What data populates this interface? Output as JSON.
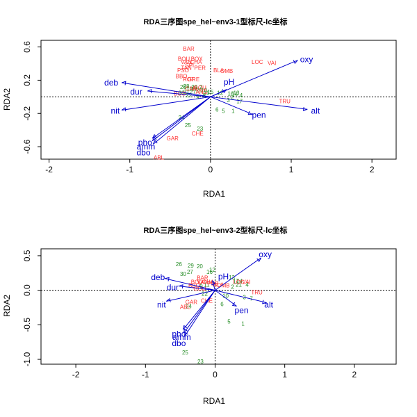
{
  "colors": {
    "species": "#ff3030",
    "sites": "#228b22",
    "env": "#0000cd",
    "axis": "#000000"
  },
  "chart_data": [
    {
      "type": "scatter",
      "title": "RDA三序图spe_hel~env3-1型标尺-lc坐标",
      "xlabel": "RDA1",
      "ylabel": "RDA2",
      "xlim": [
        -2.1,
        2.3
      ],
      "ylim": [
        -0.75,
        0.68
      ],
      "xticks": [
        -2,
        -1,
        0,
        1,
        2
      ],
      "yticks": [
        -0.6,
        -0.2,
        0.2,
        0.6
      ],
      "ytick_labels": [
        "-0.6",
        "-0.2",
        "0.2",
        "0.6"
      ],
      "species": [
        {
          "label": "BAR",
          "x": -0.27,
          "y": 0.58
        },
        {
          "label": "BOU",
          "x": -0.33,
          "y": 0.46
        },
        {
          "label": "BOX",
          "x": -0.17,
          "y": 0.46
        },
        {
          "label": "VAN",
          "x": -0.3,
          "y": 0.42
        },
        {
          "label": "CHA",
          "x": -0.18,
          "y": 0.42
        },
        {
          "label": "SPI",
          "x": -0.26,
          "y": 0.38
        },
        {
          "label": "TAN",
          "x": -0.3,
          "y": 0.35
        },
        {
          "label": "PER",
          "x": -0.13,
          "y": 0.35
        },
        {
          "label": "PSO",
          "x": -0.34,
          "y": 0.32
        },
        {
          "label": "BBO",
          "x": -0.36,
          "y": 0.25
        },
        {
          "label": "ROT",
          "x": -0.27,
          "y": 0.21
        },
        {
          "label": "GRE",
          "x": -0.21,
          "y": 0.21
        },
        {
          "label": "BLA",
          "x": 0.1,
          "y": 0.32
        },
        {
          "label": "OMB",
          "x": 0.2,
          "y": 0.31
        },
        {
          "label": "LOC",
          "x": 0.58,
          "y": 0.42
        },
        {
          "label": "VAI",
          "x": 0.76,
          "y": 0.41
        },
        {
          "label": "TRU",
          "x": 0.92,
          "y": -0.05
        },
        {
          "label": "GAR",
          "x": -0.47,
          "y": -0.5
        },
        {
          "label": "CHE",
          "x": -0.16,
          "y": -0.44
        },
        {
          "label": "ABL",
          "x": -0.64,
          "y": -0.73
        },
        {
          "label": "CAR",
          "x": -0.24,
          "y": 0.1
        },
        {
          "label": "GOU",
          "x": -0.13,
          "y": 0.11
        },
        {
          "label": "ANG",
          "x": -0.11,
          "y": 0.06
        },
        {
          "label": "BCO",
          "x": -0.38,
          "y": 0.04
        }
      ],
      "sites": [
        {
          "label": "1",
          "x": 0.28,
          "y": -0.17
        },
        {
          "label": "5",
          "x": 0.16,
          "y": -0.17
        },
        {
          "label": "4",
          "x": 0.38,
          "y": 0.02
        },
        {
          "label": "17",
          "x": 0.36,
          "y": -0.05
        },
        {
          "label": "13",
          "x": 0.32,
          "y": 0.05
        },
        {
          "label": "2",
          "x": 0.27,
          "y": 0.0
        },
        {
          "label": "3",
          "x": 0.22,
          "y": -0.04
        },
        {
          "label": "6",
          "x": 0.08,
          "y": -0.15
        },
        {
          "label": "10",
          "x": -0.08,
          "y": 0.08
        },
        {
          "label": "11",
          "x": -0.05,
          "y": 0.05
        },
        {
          "label": "12",
          "x": 0.12,
          "y": 0.05
        },
        {
          "label": "16",
          "x": 0.25,
          "y": 0.04
        },
        {
          "label": "18",
          "x": -0.2,
          "y": 0.1
        },
        {
          "label": "19",
          "x": -0.26,
          "y": 0.1
        },
        {
          "label": "21",
          "x": -0.3,
          "y": 0.06
        },
        {
          "label": "22",
          "x": -0.27,
          "y": 0.02
        },
        {
          "label": "26",
          "x": -0.34,
          "y": 0.12
        },
        {
          "label": "27",
          "x": -0.22,
          "y": 0.06
        },
        {
          "label": "28",
          "x": -0.3,
          "y": 0.13
        },
        {
          "label": "29",
          "x": -0.2,
          "y": 0.12
        },
        {
          "label": "30",
          "x": -0.36,
          "y": 0.05
        },
        {
          "label": "7",
          "x": -0.12,
          "y": 0.12
        },
        {
          "label": "8",
          "x": -0.08,
          "y": 0.02
        },
        {
          "label": "9",
          "x": -0.16,
          "y": 0.0
        },
        {
          "label": "20",
          "x": -0.14,
          "y": 0.08
        },
        {
          "label": "24",
          "x": -0.36,
          "y": -0.25
        },
        {
          "label": "25",
          "x": -0.28,
          "y": -0.34
        },
        {
          "label": "23",
          "x": -0.13,
          "y": -0.38
        },
        {
          "label": "14",
          "x": 0.3,
          "y": 0.03
        },
        {
          "label": "15",
          "x": 0.0,
          "y": 0.06
        }
      ],
      "env": [
        {
          "label": "deb",
          "x": -1.1,
          "y": 0.17,
          "lx": -1.23,
          "ly": 0.17
        },
        {
          "label": "dur",
          "x": -0.78,
          "y": 0.07,
          "lx": -0.92,
          "ly": 0.06
        },
        {
          "label": "nit",
          "x": -1.1,
          "y": -0.16,
          "lx": -1.18,
          "ly": -0.17
        },
        {
          "label": "pho",
          "x": -0.72,
          "y": -0.5,
          "lx": -0.81,
          "ly": -0.55
        },
        {
          "label": "amm",
          "x": -0.72,
          "y": -0.53,
          "lx": -0.8,
          "ly": -0.6
        },
        {
          "label": "dbo",
          "x": -0.71,
          "y": -0.57,
          "lx": -0.83,
          "ly": -0.67
        },
        {
          "label": "pH",
          "x": 0.2,
          "y": 0.09,
          "lx": 0.23,
          "ly": 0.18
        },
        {
          "label": "oxy",
          "x": 1.08,
          "y": 0.44,
          "lx": 1.19,
          "ly": 0.45
        },
        {
          "label": "pen",
          "x": 0.52,
          "y": -0.21,
          "lx": 0.6,
          "ly": -0.22
        },
        {
          "label": "alt",
          "x": 1.2,
          "y": -0.15,
          "lx": 1.3,
          "ly": -0.17
        }
      ]
    },
    {
      "type": "scatter",
      "title": "RDA三序图spe_hel~env3-2型标尺-lc坐标",
      "xlabel": "RDA1",
      "ylabel": "RDA2",
      "xlim": [
        -2.5,
        2.6
      ],
      "ylim": [
        -1.07,
        0.6
      ],
      "xticks": [
        -2,
        -1,
        0,
        1,
        2
      ],
      "yticks": [
        -1.0,
        -0.5,
        0.0,
        0.5
      ],
      "ytick_labels": [
        "-1.0",
        "-0.5",
        "0.0",
        "0.5"
      ],
      "species": [
        {
          "label": "BAR",
          "x": -0.18,
          "y": 0.18
        },
        {
          "label": "BOU",
          "x": -0.26,
          "y": 0.12
        },
        {
          "label": "VAN",
          "x": -0.18,
          "y": 0.12
        },
        {
          "label": "CHA",
          "x": -0.1,
          "y": 0.12
        },
        {
          "label": "PER",
          "x": -0.03,
          "y": 0.1
        },
        {
          "label": "BLA",
          "x": 0.05,
          "y": 0.08
        },
        {
          "label": "OMB",
          "x": 0.12,
          "y": 0.07
        },
        {
          "label": "LOC",
          "x": 0.34,
          "y": 0.12
        },
        {
          "label": "VAI",
          "x": 0.45,
          "y": 0.12
        },
        {
          "label": "TRU",
          "x": 0.6,
          "y": -0.03
        },
        {
          "label": "GAR",
          "x": -0.34,
          "y": -0.17
        },
        {
          "label": "CHE",
          "x": -0.12,
          "y": -0.15
        },
        {
          "label": "ABL",
          "x": -0.43,
          "y": -0.24
        },
        {
          "label": "GOU",
          "x": -0.22,
          "y": 0.02
        },
        {
          "label": "BBO",
          "x": -0.3,
          "y": 0.07
        }
      ],
      "sites": [
        {
          "label": "26",
          "x": -0.52,
          "y": 0.38
        },
        {
          "label": "29",
          "x": -0.35,
          "y": 0.36
        },
        {
          "label": "20",
          "x": -0.22,
          "y": 0.35
        },
        {
          "label": "30",
          "x": -0.46,
          "y": 0.24
        },
        {
          "label": "27",
          "x": -0.36,
          "y": 0.27
        },
        {
          "label": "12",
          "x": -0.04,
          "y": 0.3
        },
        {
          "label": "16",
          "x": -0.08,
          "y": 0.27
        },
        {
          "label": "13",
          "x": 0.24,
          "y": 0.19
        },
        {
          "label": "17",
          "x": 0.3,
          "y": 0.13
        },
        {
          "label": "21",
          "x": 0.34,
          "y": 0.08
        },
        {
          "label": "4",
          "x": 0.46,
          "y": 0.08
        },
        {
          "label": "14",
          "x": 0.35,
          "y": 0.13
        },
        {
          "label": "2",
          "x": 0.25,
          "y": 0.05
        },
        {
          "label": "3",
          "x": 0.42,
          "y": -0.1
        },
        {
          "label": "7",
          "x": 0.52,
          "y": -0.12
        },
        {
          "label": "10",
          "x": 0.15,
          "y": -0.08
        },
        {
          "label": "6",
          "x": 0.1,
          "y": -0.2
        },
        {
          "label": "5",
          "x": 0.2,
          "y": -0.45
        },
        {
          "label": "1",
          "x": 0.4,
          "y": -0.48
        },
        {
          "label": "24",
          "x": -0.38,
          "y": -0.23
        },
        {
          "label": "22",
          "x": -0.15,
          "y": -0.05
        },
        {
          "label": "25",
          "x": -0.43,
          "y": -0.9
        },
        {
          "label": "23",
          "x": -0.21,
          "y": -1.03
        },
        {
          "label": "9",
          "x": -0.2,
          "y": 0.06
        },
        {
          "label": "11",
          "x": -0.12,
          "y": 0.08
        }
      ],
      "env": [
        {
          "label": "deb",
          "x": -0.72,
          "y": 0.17,
          "lx": -0.82,
          "ly": 0.19
        },
        {
          "label": "dur",
          "x": -0.52,
          "y": 0.06,
          "lx": -0.61,
          "ly": 0.04
        },
        {
          "label": "nit",
          "x": -0.7,
          "y": -0.16,
          "lx": -0.77,
          "ly": -0.21
        },
        {
          "label": "pho",
          "x": -0.46,
          "y": -0.57,
          "lx": -0.52,
          "ly": -0.63
        },
        {
          "label": "amm",
          "x": -0.45,
          "y": -0.62,
          "lx": -0.48,
          "ly": -0.68
        },
        {
          "label": "dbo",
          "x": -0.44,
          "y": -0.67,
          "lx": -0.52,
          "ly": -0.77
        },
        {
          "label": "pH",
          "x": -0.04,
          "y": 0.14,
          "lx": 0.12,
          "ly": 0.2
        },
        {
          "label": "oxy",
          "x": 0.66,
          "y": 0.47,
          "lx": 0.72,
          "ly": 0.52
        },
        {
          "label": "pen",
          "x": 0.31,
          "y": -0.23,
          "lx": 0.38,
          "ly": -0.29
        },
        {
          "label": "alt",
          "x": 0.74,
          "y": -0.18,
          "lx": 0.77,
          "ly": -0.21
        }
      ]
    }
  ]
}
